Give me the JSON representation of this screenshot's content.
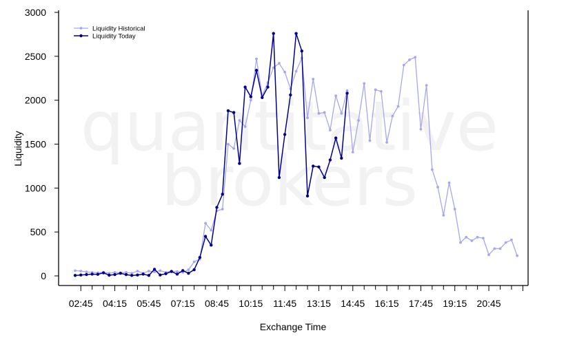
{
  "watermark": {
    "line1": "quantitative",
    "line2": "brokers"
  },
  "chart_data": {
    "type": "line",
    "xlabel": "Exchange Time",
    "ylabel": "Liquidity",
    "ylim": [
      0,
      3000
    ],
    "yticks": [
      0,
      500,
      1000,
      1500,
      2000,
      2500,
      3000
    ],
    "xtick_labels": [
      "02:45",
      "04:15",
      "05:45",
      "07:15",
      "08:45",
      "10:15",
      "11:45",
      "13:15",
      "14:45",
      "16:15",
      "17:45",
      "19:15",
      "20:45"
    ],
    "legend_position": "top-left",
    "grid": false,
    "series": [
      {
        "name": "Liquidity Historical",
        "color": "#a6a6f2",
        "values": [
          60,
          55,
          45,
          40,
          35,
          40,
          30,
          40,
          35,
          40,
          30,
          55,
          30,
          55,
          45,
          60,
          40,
          55,
          50,
          40,
          70,
          160,
          190,
          600,
          520,
          740,
          760,
          1500,
          1450,
          1770,
          1700,
          2000,
          2470,
          2050,
          2200,
          2370,
          2420,
          2320,
          2130,
          2330,
          2480,
          1800,
          2240,
          1850,
          1860,
          1660,
          2050,
          1850,
          2110,
          1410,
          1770,
          2190,
          1540,
          2120,
          2100,
          1520,
          1820,
          1930,
          2400,
          2460,
          2490,
          1670,
          2170,
          1210,
          1010,
          690,
          1060,
          760,
          380,
          440,
          400,
          440,
          430,
          240,
          310,
          310,
          380,
          410,
          230
        ]
      },
      {
        "name": "Liquidity Today",
        "color": "#00008b",
        "values": [
          5,
          10,
          15,
          20,
          18,
          35,
          8,
          15,
          30,
          15,
          5,
          10,
          20,
          5,
          75,
          10,
          25,
          50,
          20,
          60,
          30,
          70,
          210,
          450,
          350,
          780,
          930,
          1880,
          1860,
          1280,
          2150,
          2040,
          2340,
          2030,
          2150,
          2760,
          1120,
          1610,
          2060,
          2760,
          2560,
          910,
          1250,
          1240,
          1120,
          1320,
          1570,
          1340,
          2080
        ]
      }
    ]
  }
}
